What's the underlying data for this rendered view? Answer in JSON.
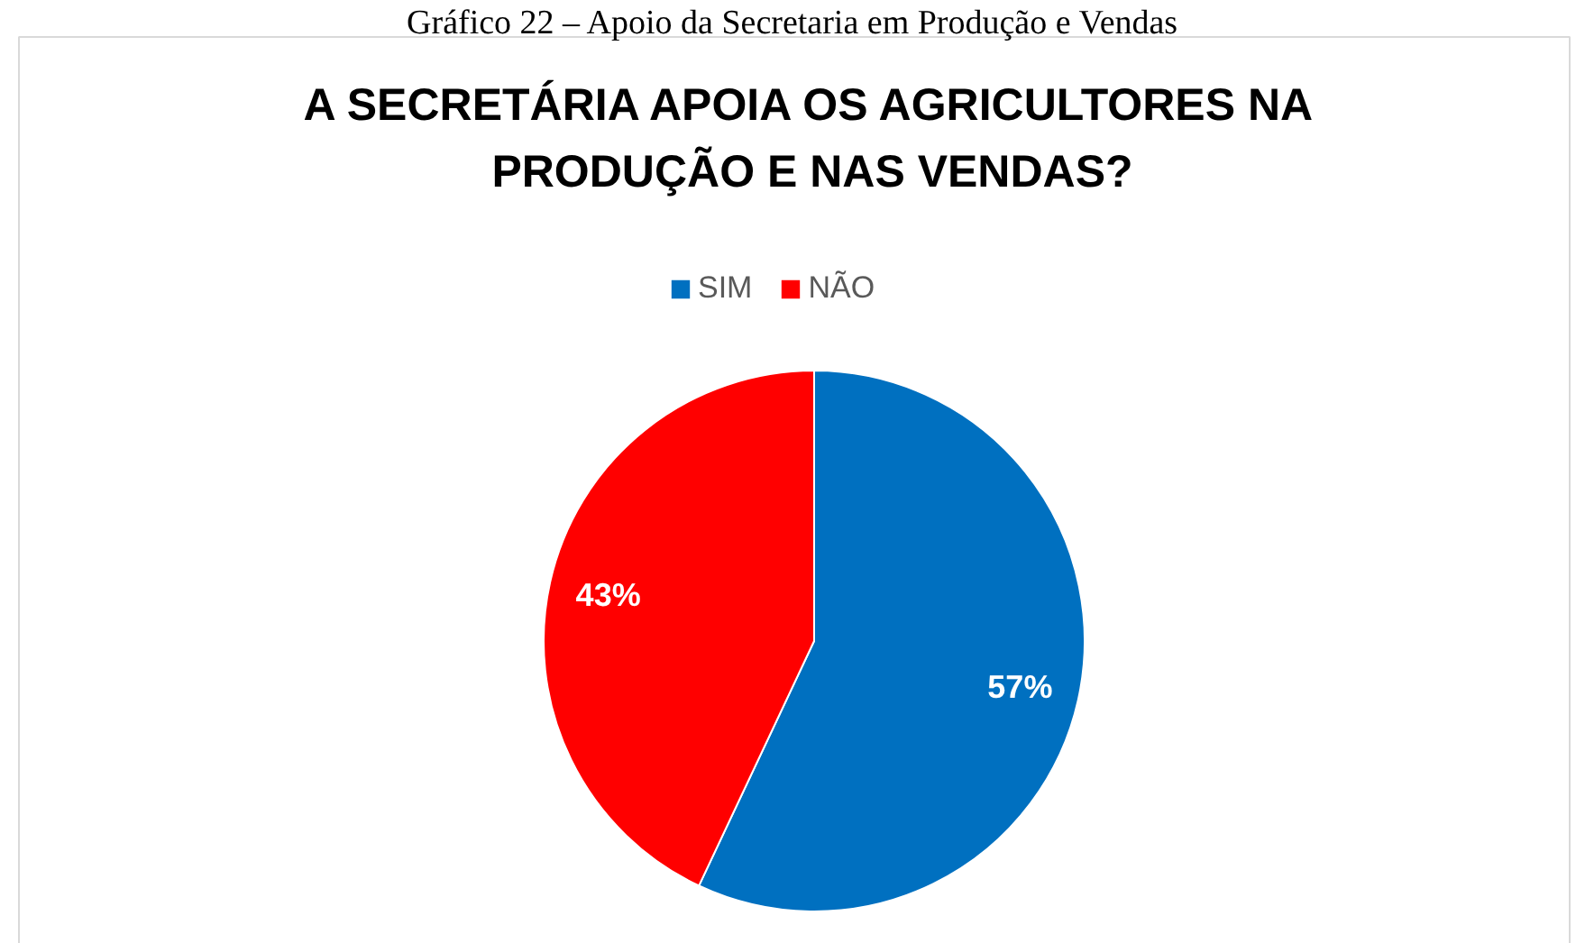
{
  "chart_data": {
    "type": "pie",
    "title": "A SECRETÁRIA APOIA OS AGRICULTORES NA PRODUÇÃO E NAS VENDAS?",
    "annotations": [
      "Gráfico 22 – Apoio da Secretaria em Produção e Vendas"
    ],
    "categories": [
      "SIM",
      "NÃO"
    ],
    "values": [
      57,
      43
    ],
    "colors": [
      "#0070c0",
      "#ff0000"
    ],
    "value_labels": [
      "57%",
      "43%"
    ],
    "legend": "top"
  }
}
